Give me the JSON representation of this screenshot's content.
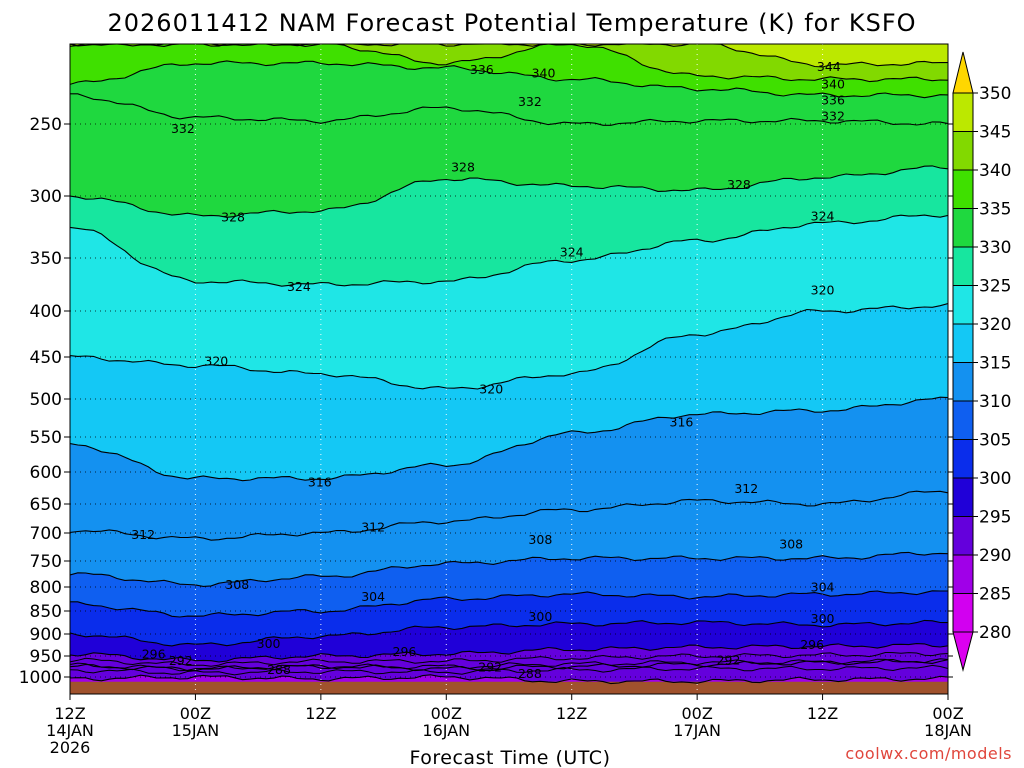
{
  "chart_data": {
    "type": "heatmap",
    "title": "2026011412 NAM Forecast Potential Temperature (K) for KSFO",
    "xlabel": "Forecast Time (UTC)",
    "ylabel": "",
    "credit": "coolwx.com/models",
    "pressure_range": [
      1020,
      200
    ],
    "y_ticks": [
      "250",
      "300",
      "350",
      "400",
      "450",
      "500",
      "550",
      "600",
      "650",
      "700",
      "750",
      "800",
      "850",
      "900",
      "950",
      "1000"
    ],
    "y_tick_values": [
      250,
      300,
      350,
      400,
      450,
      500,
      550,
      600,
      650,
      700,
      750,
      800,
      850,
      900,
      950,
      1000
    ],
    "x_ticks": [
      {
        "hour": 0,
        "label": "12Z",
        "sub": "14JAN",
        "sub2": "2026"
      },
      {
        "hour": 12,
        "label": "00Z",
        "sub": "15JAN",
        "sub2": ""
      },
      {
        "hour": 24,
        "label": "12Z",
        "sub": "",
        "sub2": ""
      },
      {
        "hour": 36,
        "label": "00Z",
        "sub": "16JAN",
        "sub2": ""
      },
      {
        "hour": 48,
        "label": "12Z",
        "sub": "",
        "sub2": ""
      },
      {
        "hour": 60,
        "label": "00Z",
        "sub": "17JAN",
        "sub2": ""
      },
      {
        "hour": 72,
        "label": "12Z",
        "sub": "",
        "sub2": ""
      },
      {
        "hour": 84,
        "label": "00Z",
        "sub": "18JAN",
        "sub2": ""
      }
    ],
    "x_range_hours": [
      0,
      84
    ],
    "contour_hours": [
      0,
      12,
      24,
      36,
      48,
      60,
      72,
      84
    ],
    "contours": [
      {
        "theta": 344,
        "p": [
          200,
          200,
          200,
          200,
          200,
          200,
          213,
          212
        ]
      },
      {
        "theta": 340,
        "p": [
          200,
          200,
          200,
          212,
          200,
          220,
          222,
          222
        ]
      },
      {
        "theta": 336,
        "p": [
          225,
          212,
          212,
          215,
          222,
          228,
          232,
          232
        ]
      },
      {
        "theta": 332,
        "p": [
          232,
          246,
          248,
          240,
          250,
          248,
          248,
          250
        ]
      },
      {
        "theta": 328,
        "p": [
          300,
          316,
          312,
          288,
          293,
          296,
          287,
          280
        ]
      },
      {
        "theta": 324,
        "p": [
          325,
          372,
          375,
          372,
          352,
          336,
          322,
          315
        ]
      },
      {
        "theta": 320,
        "p": [
          450,
          460,
          470,
          488,
          470,
          425,
          400,
          395
        ]
      },
      {
        "theta": 316,
        "p": [
          560,
          610,
          610,
          590,
          545,
          520,
          515,
          500
        ]
      },
      {
        "theta": 312,
        "p": [
          695,
          710,
          700,
          680,
          660,
          645,
          650,
          630
        ]
      },
      {
        "theta": 308,
        "p": [
          775,
          795,
          780,
          755,
          745,
          745,
          745,
          735
        ]
      },
      {
        "theta": 304,
        "p": [
          835,
          860,
          850,
          825,
          815,
          820,
          815,
          810
        ]
      },
      {
        "theta": 300,
        "p": [
          900,
          925,
          905,
          885,
          878,
          875,
          880,
          875
        ]
      },
      {
        "theta": 296,
        "p": [
          945,
          960,
          950,
          945,
          935,
          930,
          928,
          925
        ]
      },
      {
        "theta": 292,
        "p": [
          975,
          980,
          975,
          980,
          975,
          970,
          966,
          962
        ]
      },
      {
        "theta": 288,
        "p": [
          1002,
          1000,
          1002,
          1000,
          1005,
          1005,
          1003,
          1002
        ]
      }
    ],
    "contour_labels": [
      {
        "text": "344",
        "hour": 72.6,
        "p": 214
      },
      {
        "text": "340",
        "hour": 45.3,
        "p": 218
      },
      {
        "text": "340",
        "hour": 73.0,
        "p": 225
      },
      {
        "text": "336",
        "hour": 39.4,
        "p": 216
      },
      {
        "text": "336",
        "hour": 73.0,
        "p": 235
      },
      {
        "text": "332",
        "hour": 44.0,
        "p": 236
      },
      {
        "text": "332",
        "hour": 73.0,
        "p": 245
      },
      {
        "text": "332",
        "hour": 10.8,
        "p": 253
      },
      {
        "text": "328",
        "hour": 37.6,
        "p": 280
      },
      {
        "text": "328",
        "hour": 64.0,
        "p": 292
      },
      {
        "text": "328",
        "hour": 15.6,
        "p": 317
      },
      {
        "text": "324",
        "hour": 48.0,
        "p": 345
      },
      {
        "text": "324",
        "hour": 72.0,
        "p": 316
      },
      {
        "text": "324",
        "hour": 21.9,
        "p": 377
      },
      {
        "text": "320",
        "hour": 14.0,
        "p": 455
      },
      {
        "text": "320",
        "hour": 40.3,
        "p": 488
      },
      {
        "text": "320",
        "hour": 72.0,
        "p": 380
      },
      {
        "text": "316",
        "hour": 58.5,
        "p": 530
      },
      {
        "text": "316",
        "hour": 23.9,
        "p": 616
      },
      {
        "text": "312",
        "hour": 64.7,
        "p": 626
      },
      {
        "text": "312",
        "hour": 29.0,
        "p": 690
      },
      {
        "text": "312",
        "hour": 7.0,
        "p": 703
      },
      {
        "text": "308",
        "hour": 45.0,
        "p": 712
      },
      {
        "text": "308",
        "hour": 69.0,
        "p": 720
      },
      {
        "text": "308",
        "hour": 16.0,
        "p": 795
      },
      {
        "text": "304",
        "hour": 29.0,
        "p": 820
      },
      {
        "text": "304",
        "hour": 72.0,
        "p": 800
      },
      {
        "text": "300",
        "hour": 45.0,
        "p": 862
      },
      {
        "text": "300",
        "hour": 72.0,
        "p": 866
      },
      {
        "text": "300",
        "hour": 19.0,
        "p": 922
      },
      {
        "text": "296",
        "hour": 8.0,
        "p": 945
      },
      {
        "text": "296",
        "hour": 32.0,
        "p": 940
      },
      {
        "text": "296",
        "hour": 71.0,
        "p": 924
      },
      {
        "text": "292",
        "hour": 10.6,
        "p": 961
      },
      {
        "text": "292",
        "hour": 40.2,
        "p": 976
      },
      {
        "text": "292",
        "hour": 63.0,
        "p": 959
      },
      {
        "text": "288",
        "hour": 20.0,
        "p": 982
      },
      {
        "text": "288",
        "hour": 44.0,
        "p": 992
      }
    ],
    "colorbar": {
      "labels": [
        "350",
        "345",
        "340",
        "335",
        "330",
        "325",
        "320",
        "315",
        "310",
        "305",
        "300",
        "295",
        "290",
        "285",
        "280"
      ],
      "values": [
        350,
        345,
        340,
        335,
        330,
        325,
        320,
        315,
        310,
        305,
        300,
        295,
        290,
        285,
        280
      ],
      "colors": [
        "#ffd700",
        "#bce800",
        "#82d900",
        "#3fe000",
        "#1fd83f",
        "#17e69f",
        "#1fe6e6",
        "#14c8f5",
        "#1491f0",
        "#0f5ff0",
        "#0a2deb",
        "#2000d8",
        "#6400dc",
        "#a000e8",
        "#d200f0"
      ],
      "top_arrow_color": "#ffd700",
      "bottom_arrow_color": "#dc00f0"
    },
    "surface_color": "#a0522d",
    "grid": true
  }
}
